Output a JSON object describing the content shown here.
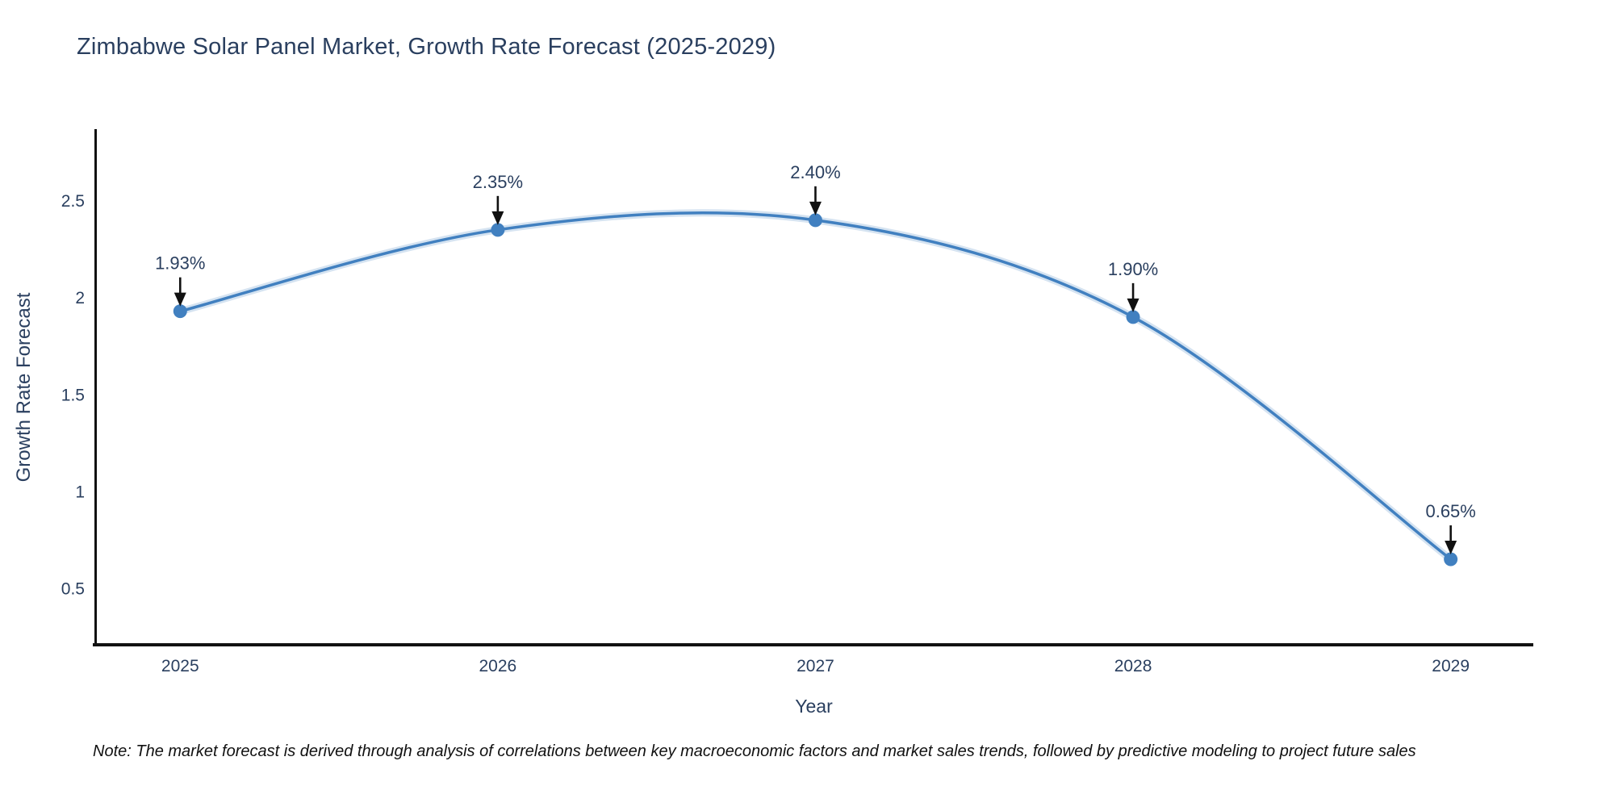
{
  "chart": {
    "note": "Note: The market forecast is derived through analysis of correlations between key macroeconomic factors and market sales trends, followed by predictive modeling to project future sales",
    "colors": {
      "line": "#4180c0",
      "marker": "#4180c0",
      "axis_line": "#111111",
      "chart_text": "#2a3f5f",
      "arrow": "#111111",
      "note_text": "#111111",
      "background": "#ffffff"
    }
  },
  "chart_data": {
    "type": "line",
    "title": "Zimbabwe Solar Panel Market, Growth Rate Forecast (2025-2029)",
    "xlabel": "Year",
    "ylabel": "Growth Rate Forecast",
    "x": [
      2025,
      2026,
      2027,
      2028,
      2029
    ],
    "y": [
      1.93,
      2.35,
      2.4,
      1.9,
      0.65
    ],
    "point_labels": [
      "1.93%",
      "2.35%",
      "2.40%",
      "1.90%",
      "0.65%"
    ],
    "xtick_values": [
      2025,
      2026,
      2027,
      2028,
      2029
    ],
    "xtick_labels": [
      "2025",
      "2026",
      "2027",
      "2028",
      "2029"
    ],
    "ytick_values": [
      0.5,
      1,
      1.5,
      2,
      2.5
    ],
    "ytick_labels": [
      "0.5",
      "1",
      "1.5",
      "2",
      "2.5"
    ],
    "xlim": [
      2024.73,
      2029.26
    ],
    "ylim": [
      0.2,
      2.87
    ],
    "grid": false,
    "legend": null,
    "line_shape": "spline",
    "marker": "circle",
    "annotation_arrows": true
  }
}
